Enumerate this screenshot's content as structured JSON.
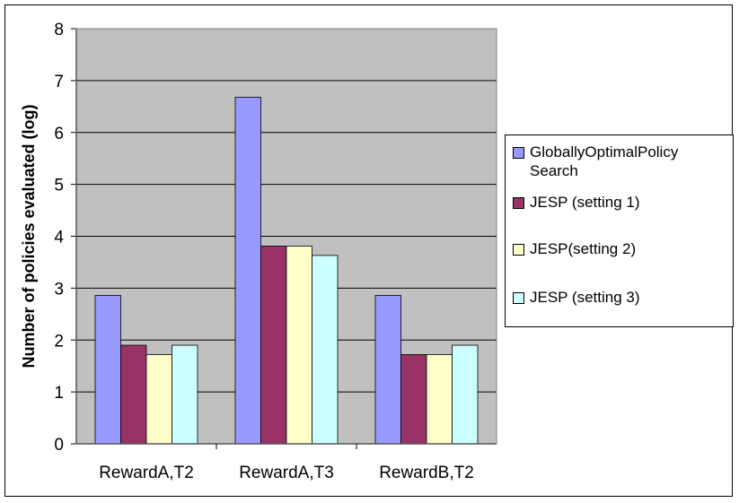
{
  "chart_data": {
    "type": "bar",
    "title": "",
    "xlabel": "",
    "ylabel": "Number of policies evaluated (log)",
    "categories": [
      "RewardA,T2",
      "RewardA,T3",
      "RewardB,T2"
    ],
    "ylim": [
      0,
      8
    ],
    "yticks": [
      "0",
      "1",
      "2",
      "3",
      "4",
      "5",
      "6",
      "7",
      "8"
    ],
    "grid": true,
    "legend_position": "right",
    "plot_background": "#c0c0c0",
    "series": [
      {
        "name": "GloballyOptimalPolicy Search",
        "color": "#9999ff",
        "values": [
          2.86,
          6.68,
          2.86
        ]
      },
      {
        "name": "JESP (setting 1)",
        "color": "#993366",
        "values": [
          1.9,
          3.81,
          1.72
        ]
      },
      {
        "name": "JESP(setting 2)",
        "color": "#ffffcc",
        "values": [
          1.72,
          3.81,
          1.72
        ]
      },
      {
        "name": "JESP (setting 3)",
        "color": "#ccffff",
        "values": [
          1.9,
          3.63,
          1.9
        ]
      }
    ]
  }
}
